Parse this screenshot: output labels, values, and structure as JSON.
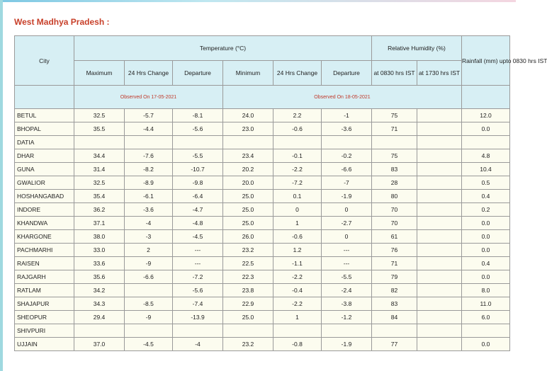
{
  "title": "West Madhya Pradesh :",
  "headers": {
    "city": "City",
    "temperature": "Temperature (°C)",
    "relative_humidity": "Relative Humidity (%)",
    "rainfall": "Rainfall (mm) upto 0830 hrs IST",
    "maximum": "Maximum",
    "change_24hrs": "24 Hrs Change",
    "departure": "Departure",
    "minimum": "Minimum",
    "change_24hrs_min": "24 Hrs Change",
    "departure_min": "Departure",
    "rh_0830": "at 0830 hrs IST",
    "rh_1730": "at 1730 hrs IST",
    "observed_max": "Observed On 17-05-2021",
    "observed_min": "Observed On 18-05-2021"
  },
  "rows": [
    {
      "city": "BETUL",
      "max": "32.5",
      "max_change": "-5.7",
      "max_dep": "-8.1",
      "min": "24.0",
      "min_change": "2.2",
      "min_dep": "-1",
      "rh0830": "75",
      "rh1730": "",
      "rain": "12.0"
    },
    {
      "city": "BHOPAL",
      "max": "35.5",
      "max_change": "-4.4",
      "max_dep": "-5.6",
      "min": "23.0",
      "min_change": "-0.6",
      "min_dep": "-3.6",
      "rh0830": "71",
      "rh1730": "",
      "rain": "0.0"
    },
    {
      "city": "DATIA",
      "max": "",
      "max_change": "",
      "max_dep": "",
      "min": "",
      "min_change": "",
      "min_dep": "",
      "rh0830": "",
      "rh1730": "",
      "rain": ""
    },
    {
      "city": "DHAR",
      "max": "34.4",
      "max_change": "-7.6",
      "max_dep": "-5.5",
      "min": "23.4",
      "min_change": "-0.1",
      "min_dep": "-0.2",
      "rh0830": "75",
      "rh1730": "",
      "rain": "4.8"
    },
    {
      "city": "GUNA",
      "max": "31.4",
      "max_change": "-8.2",
      "max_dep": "-10.7",
      "min": "20.2",
      "min_change": "-2.2",
      "min_dep": "-6.6",
      "rh0830": "83",
      "rh1730": "",
      "rain": "10.4"
    },
    {
      "city": "GWALIOR",
      "max": "32.5",
      "max_change": "-8.9",
      "max_dep": "-9.8",
      "min": "20.0",
      "min_change": "-7.2",
      "min_dep": "-7",
      "rh0830": "28",
      "rh1730": "",
      "rain": "0.5"
    },
    {
      "city": "HOSHANGABAD",
      "max": "35.4",
      "max_change": "-6.1",
      "max_dep": "-6.4",
      "min": "25.0",
      "min_change": "0.1",
      "min_dep": "-1.9",
      "rh0830": "80",
      "rh1730": "",
      "rain": "0.4"
    },
    {
      "city": "INDORE",
      "max": "36.2",
      "max_change": "-3.6",
      "max_dep": "-4.7",
      "min": "25.0",
      "min_change": "0",
      "min_dep": "0",
      "rh0830": "70",
      "rh1730": "",
      "rain": "0.2"
    },
    {
      "city": "KHANDWA",
      "max": "37.1",
      "max_change": "-4",
      "max_dep": "-4.8",
      "min": "25.0",
      "min_change": "1",
      "min_dep": "-2.7",
      "rh0830": "70",
      "rh1730": "",
      "rain": "0.0"
    },
    {
      "city": "KHARGONE",
      "max": "38.0",
      "max_change": "-3",
      "max_dep": "-4.5",
      "min": "26.0",
      "min_change": "-0.6",
      "min_dep": "0",
      "rh0830": "61",
      "rh1730": "",
      "rain": "0.0"
    },
    {
      "city": "PACHMARHI",
      "max": "33.0",
      "max_change": "2",
      "max_dep": "---",
      "min": "23.2",
      "min_change": "1.2",
      "min_dep": "---",
      "rh0830": "76",
      "rh1730": "",
      "rain": "0.0"
    },
    {
      "city": "RAISEN",
      "max": "33.6",
      "max_change": "-9",
      "max_dep": "---",
      "min": "22.5",
      "min_change": "-1.1",
      "min_dep": "---",
      "rh0830": "71",
      "rh1730": "",
      "rain": "0.4"
    },
    {
      "city": "RAJGARH",
      "max": "35.6",
      "max_change": "-6.6",
      "max_dep": "-7.2",
      "min": "22.3",
      "min_change": "-2.2",
      "min_dep": "-5.5",
      "rh0830": "79",
      "rh1730": "",
      "rain": "0.0"
    },
    {
      "city": "RATLAM",
      "max": "34.2",
      "max_change": "",
      "max_dep": "-5.6",
      "min": "23.8",
      "min_change": "-0.4",
      "min_dep": "-2.4",
      "rh0830": "82",
      "rh1730": "",
      "rain": "8.0"
    },
    {
      "city": "SHAJAPUR",
      "max": "34.3",
      "max_change": "-8.5",
      "max_dep": "-7.4",
      "min": "22.9",
      "min_change": "-2.2",
      "min_dep": "-3.8",
      "rh0830": "83",
      "rh1730": "",
      "rain": "11.0"
    },
    {
      "city": "SHEOPUR",
      "max": "29.4",
      "max_change": "-9",
      "max_dep": "-13.9",
      "min": "25.0",
      "min_change": "1",
      "min_dep": "-1.2",
      "rh0830": "84",
      "rh1730": "",
      "rain": "6.0"
    },
    {
      "city": "SHIVPURI",
      "max": "",
      "max_change": "",
      "max_dep": "",
      "min": "",
      "min_change": "",
      "min_dep": "",
      "rh0830": "",
      "rh1730": "",
      "rain": ""
    },
    {
      "city": "UJJAIN",
      "max": "37.0",
      "max_change": "-4.5",
      "max_dep": "-4",
      "min": "23.2",
      "min_change": "-0.8",
      "min_dep": "-1.9",
      "rh0830": "77",
      "rh1730": "",
      "rain": "0.0"
    }
  ]
}
